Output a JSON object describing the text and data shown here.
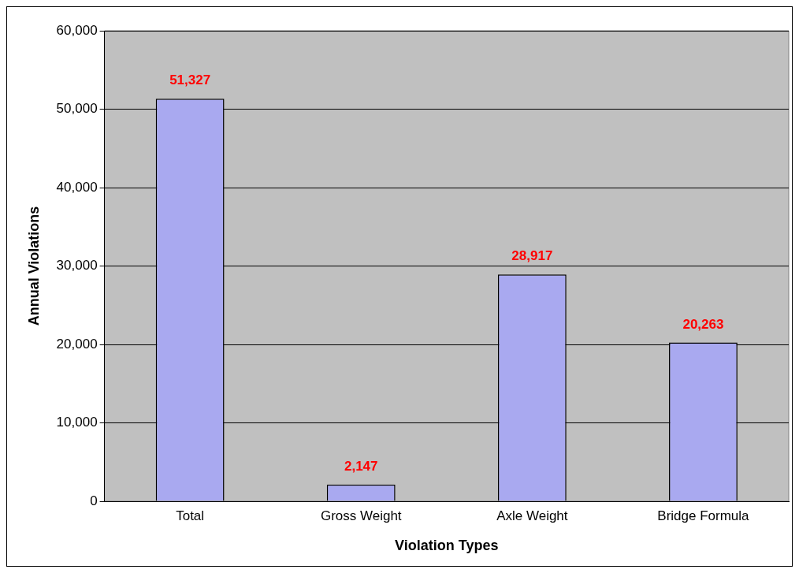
{
  "chart_data": {
    "type": "bar",
    "xlabel": "Violation Types",
    "ylabel": "Annual Violations",
    "categories": [
      "Total",
      "Gross Weight",
      "Axle Weight",
      "Bridge Formula"
    ],
    "series": [
      {
        "color": "#a9a9f0",
        "values": [
          51327,
          2147,
          28917,
          20263
        ],
        "value_labels": [
          "51,327",
          "2,147",
          "28,917",
          "20,263"
        ]
      }
    ],
    "ylim": [
      0,
      60000
    ],
    "yticks": [
      0,
      {
        "value": 10000,
        "label": "10,000"
      },
      {
        "value": 20000,
        "label": "20,000"
      },
      {
        "value": 30000,
        "label": "30,000"
      },
      {
        "value": 40000,
        "label": "40,000"
      },
      {
        "value": 50000,
        "label": "50,000"
      },
      {
        "value": 60000,
        "label": "60,000"
      }
    ],
    "grid": "y",
    "legend": false
  }
}
